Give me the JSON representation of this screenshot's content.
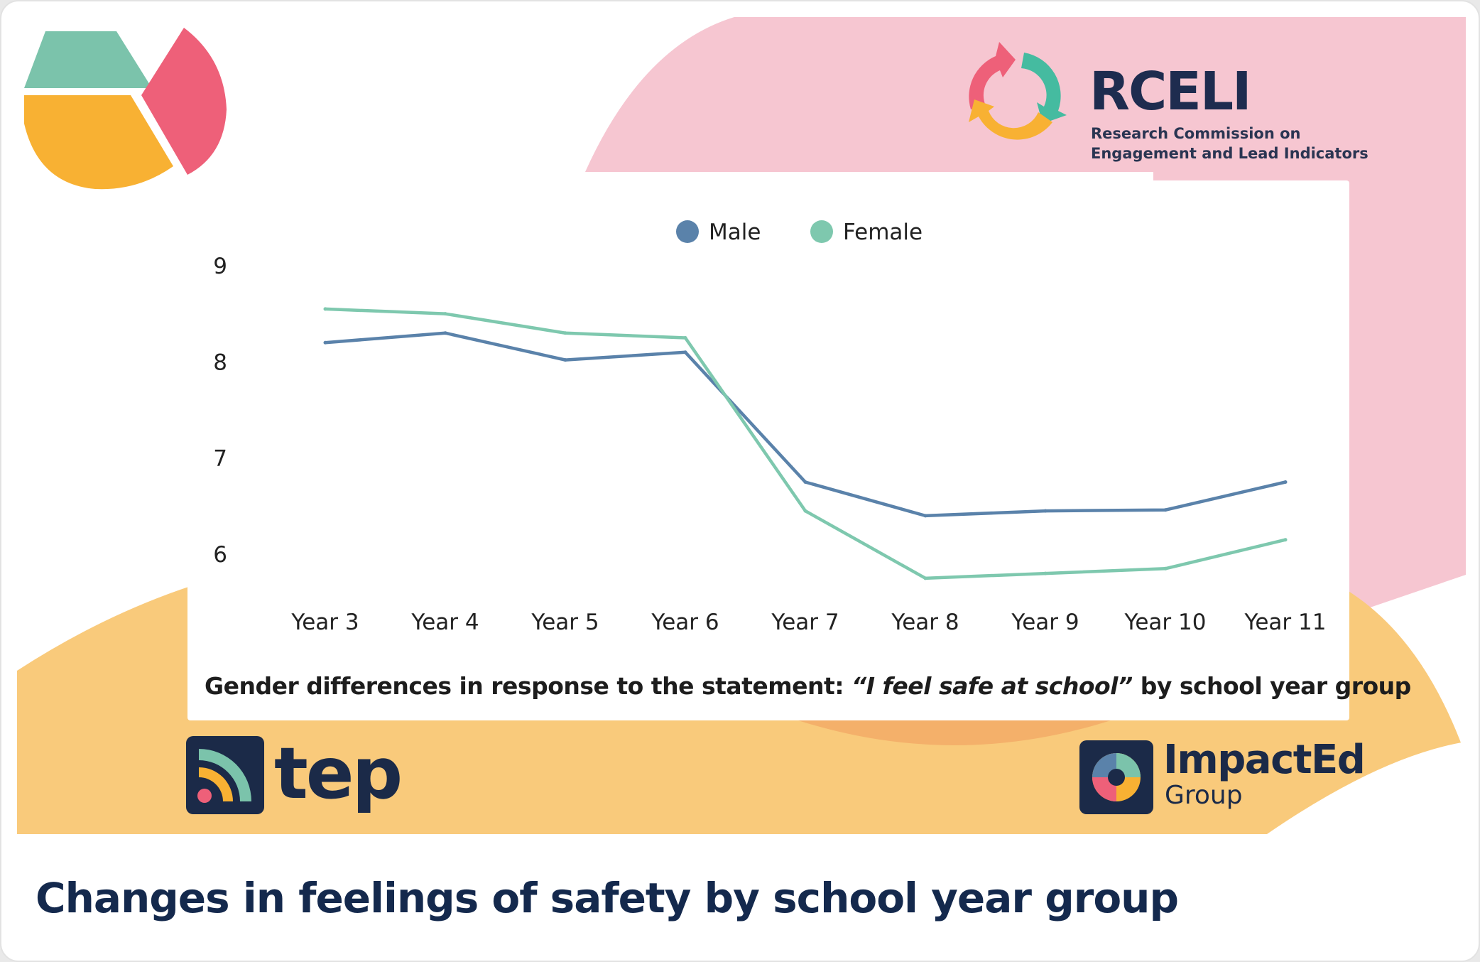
{
  "card": {
    "title": "Changes in feelings of safety by school year group"
  },
  "brands": {
    "rceli": {
      "name": "RCELI",
      "subtitle_line1": "Research Commission on",
      "subtitle_line2": "Engagement and Lead Indicators",
      "icon": "circular-arrows-logo-icon"
    },
    "tep": {
      "name": "tep",
      "icon": "tep-broadcast-logo-icon"
    },
    "impacted": {
      "name": "ImpactEd",
      "subtitle": "Group",
      "icon": "impacted-pie-logo-icon"
    },
    "decor": "pie-chart-decoration-icon"
  },
  "colors": {
    "male": "#5a82aa",
    "female": "#7ec8ae",
    "pink": "#f6c6d1",
    "yellow": "#f9ca7b",
    "navy": "#14294d",
    "pie_green": "#7bc3ab",
    "pie_pink": "#ee6079",
    "pie_yellow": "#f8b133"
  },
  "chart_data": {
    "type": "line",
    "title": "",
    "caption_pre": "Gender differences in response to the statement: ",
    "caption_quote": "“I feel safe at school”",
    "caption_post": " by school year group",
    "xlabel": "",
    "ylabel": "",
    "ylim": [
      5.7,
      9
    ],
    "yticks": [
      6,
      7,
      8,
      9
    ],
    "grid": false,
    "legend_position": "top-center",
    "categories": [
      "Year 3",
      "Year 4",
      "Year 5",
      "Year 6",
      "Year 7",
      "Year 8",
      "Year 9",
      "Year 10",
      "Year 11"
    ],
    "series": [
      {
        "name": "Male",
        "values": [
          8.2,
          8.3,
          8.02,
          8.1,
          6.75,
          6.4,
          6.45,
          6.46,
          6.75
        ]
      },
      {
        "name": "Female",
        "values": [
          8.55,
          8.5,
          8.3,
          8.25,
          6.45,
          5.75,
          5.8,
          5.85,
          6.15
        ]
      }
    ]
  }
}
